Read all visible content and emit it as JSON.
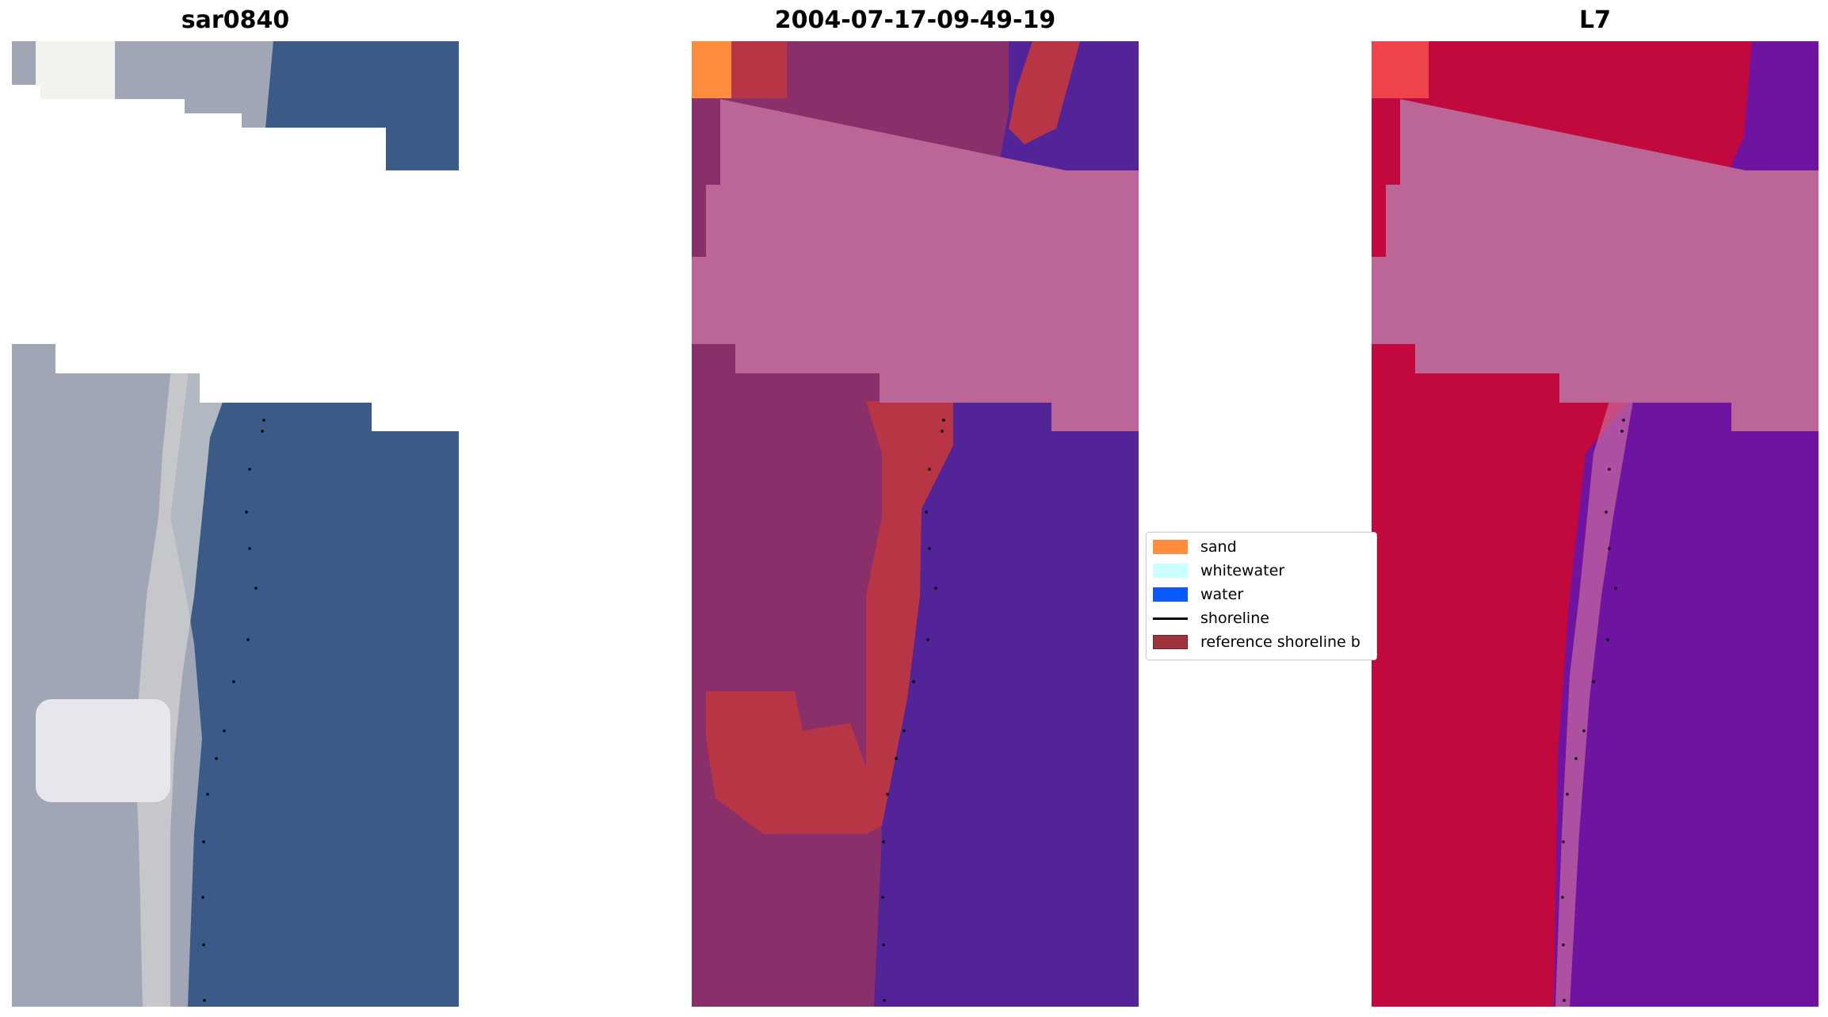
{
  "panels": [
    {
      "id": "rgb",
      "title": "sar0840"
    },
    {
      "id": "classified",
      "title": "2004-07-17-09-49-19"
    },
    {
      "id": "index",
      "title": "L7"
    }
  ],
  "legend": {
    "items": [
      {
        "label": "sand",
        "color": "#ff8c3c",
        "kind": "patch"
      },
      {
        "label": "whitewater",
        "color": "#c8ffff",
        "kind": "patch"
      },
      {
        "label": "water",
        "color": "#0a5afa",
        "kind": "patch"
      },
      {
        "label": "shoreline",
        "color": "#000000",
        "kind": "line"
      },
      {
        "label": "reference shoreline b",
        "color": "#a0343a",
        "kind": "patch"
      }
    ]
  },
  "colors": {
    "rgb_land": "#a0a6b6",
    "rgb_beach": "#cfcfcf",
    "rgb_water": "#3b5a88",
    "rgb_cloud": "#e9e9ec",
    "cls_land": "#8a2f6a",
    "cls_buffer": "#b83546",
    "cls_sand": "#ff8c3c",
    "cls_water": "#532398",
    "cls_cloud": "#bb6697",
    "idx_land": "#c1093e",
    "idx_water": "#6e14a0",
    "idx_cloud": "#bb6697",
    "idx_beach": "#c96aa1",
    "shoreline": "#000000"
  }
}
